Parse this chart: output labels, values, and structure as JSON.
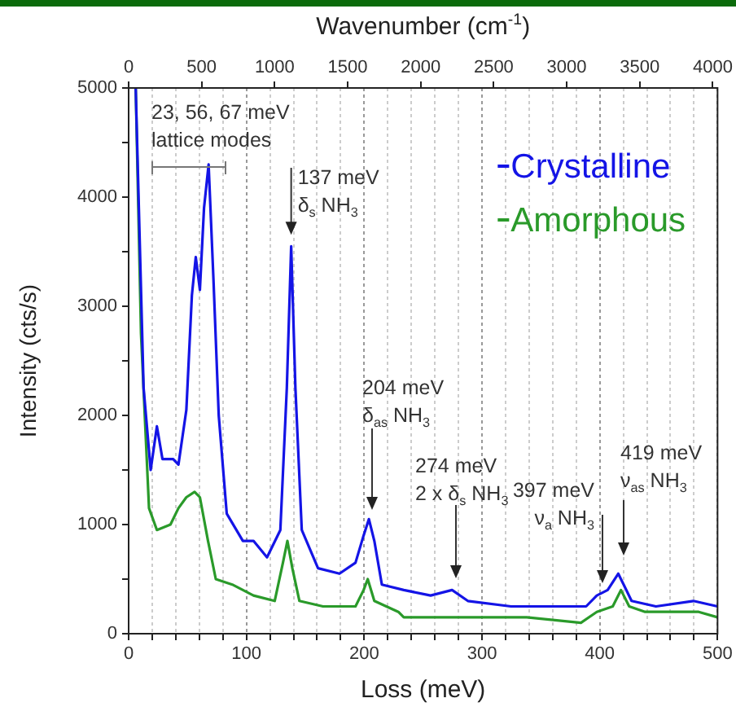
{
  "chart_data": {
    "type": "line",
    "xlabel": "Loss (meV)",
    "ylabel": "Intensity (cts/s)",
    "x2label": "Wavenumber (cm$^{-1}$)",
    "xlim": [
      0,
      500
    ],
    "xticks": [
      0,
      {
        "value": 20,
        "label": null
      },
      {
        "value": 40,
        "label": null
      },
      {
        "value": 60,
        "label": null
      },
      {
        "value": 80,
        "label": null
      },
      100,
      {
        "value": 120,
        "label": null
      },
      {
        "value": 140,
        "label": null
      },
      {
        "value": 160,
        "label": null
      },
      {
        "value": 180,
        "label": null
      },
      200,
      {
        "value": 220,
        "label": null
      },
      {
        "value": 240,
        "label": null
      },
      {
        "value": 260,
        "label": null
      },
      {
        "value": 280,
        "label": null
      },
      300,
      {
        "value": 320,
        "label": null
      },
      {
        "value": 340,
        "label": null
      },
      {
        "value": 360,
        "label": null
      },
      {
        "value": 380,
        "label": null
      },
      400,
      {
        "value": 420,
        "label": null
      },
      {
        "value": 440,
        "label": null
      },
      {
        "value": 460,
        "label": null
      },
      {
        "value": 480,
        "label": null
      },
      500
    ],
    "x2lim": [
      0,
      4033
    ],
    "x2ticks": [
      0,
      500,
      1000,
      1500,
      2000,
      2500,
      3000,
      3500,
      4000
    ],
    "ylim": [
      0,
      5000
    ],
    "yticks": [
      0,
      {
        "value": 500,
        "label": null
      },
      1000,
      {
        "value": 1500,
        "label": null
      },
      2000,
      {
        "value": 2500,
        "label": null
      },
      3000,
      {
        "value": 3500,
        "label": null
      },
      4000,
      {
        "value": 4500,
        "label": null
      },
      5000
    ],
    "grid": "x",
    "legend": "top right",
    "series": [
      {
        "name": "Crystalline",
        "color": "#1414e6",
        "x": [
          6,
          12.7,
          18.7,
          24,
          28.7,
          37.8,
          42.3,
          49,
          53.7,
          57,
          60.5,
          64,
          67.9,
          72,
          76.5,
          83.3,
          97,
          106,
          117.5,
          128.8,
          134.3,
          138,
          141.6,
          147,
          160.8,
          179,
          192.6,
          199.5,
          204,
          208.6,
          215,
          233.6,
          256.4,
          274.6,
          288,
          324.7,
          356.6,
          388.4,
          397.5,
          406.7,
          415.7,
          420.3,
          427,
          447.7,
          479.5,
          500
        ],
        "values": [
          5000,
          2250,
          1500,
          1900,
          1600,
          1600,
          1550,
          2050,
          3100,
          3450,
          3150,
          3900,
          4300,
          3250,
          2000,
          1100,
          850,
          850,
          700,
          950,
          2250,
          3550,
          2250,
          950,
          600,
          550,
          650,
          900,
          1050,
          850,
          450,
          400,
          350,
          400,
          300,
          250,
          250,
          250,
          350,
          400,
          550,
          450,
          300,
          250,
          300,
          250
        ]
      },
      {
        "name": "Amorphous",
        "color": "#2a9a2a",
        "x": [
          6,
          10.5,
          17.3,
          24,
          35.5,
          42.3,
          49,
          56,
          60.5,
          67.4,
          74,
          88,
          106,
          124,
          131,
          134.8,
          139,
          145,
          165,
          192.6,
          199.5,
          203,
          208.6,
          229,
          233.6,
          302,
          338,
          384,
          397.5,
          411,
          418,
          425,
          438.5,
          484,
          500
        ],
        "values": [
          5000,
          2750,
          1150,
          950,
          1000,
          1150,
          1250,
          1300,
          1250,
          850,
          500,
          450,
          350,
          300,
          650,
          850,
          600,
          300,
          250,
          250,
          400,
          500,
          300,
          200,
          150,
          150,
          150,
          100,
          200,
          250,
          400,
          250,
          200,
          200,
          150
        ]
      }
    ],
    "annotations": [
      "23, 56, 67 meV\nlattice modes",
      {
        "text": "137 meV\nδ$_{s}$ NH$_{3}$",
        "x": 138,
        "y": 3550
      },
      "204 meV\nδ$_{as}$ NH$_{3}$",
      "274 meV\n2 x δ$_{s}$ NH$_{3}$",
      "397 meV\nν$_{a}$ NH$_{3}$",
      "419 meV\nν$_{as}$ NH$_{3}$"
    ]
  }
}
